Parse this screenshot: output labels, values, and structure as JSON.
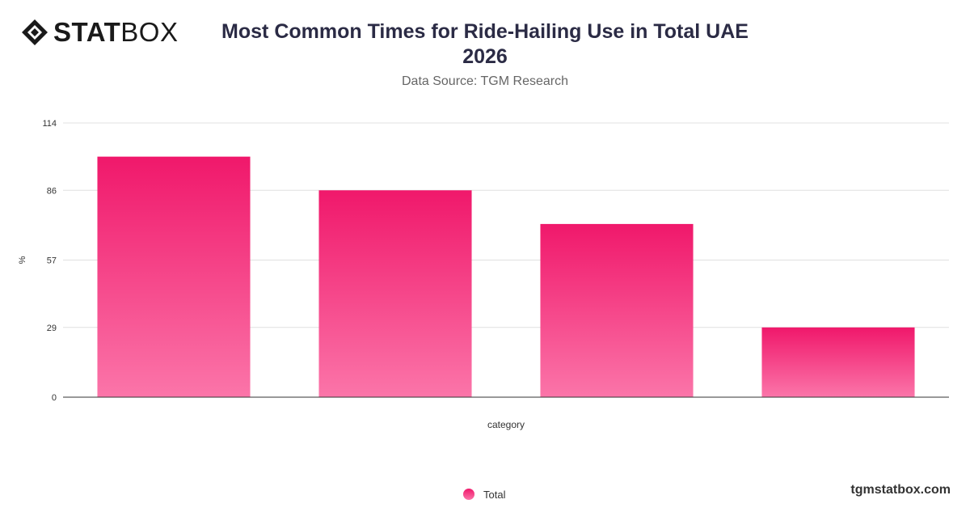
{
  "brand": {
    "logo_bold": "STAT",
    "logo_light": "BOX",
    "footer": "tgmstatbox.com"
  },
  "header": {
    "title_line1": "Most Common Times for Ride-Hailing Use in Total UAE",
    "title_line2": "2026",
    "subtitle": "Data Source: TGM Research"
  },
  "legend": {
    "label": "Total"
  },
  "colors": {
    "bar_top": "#f0186b",
    "bar_bottom": "#fb75a9",
    "grid": "#e0e0e0",
    "axis": "#333333"
  },
  "chart_data": {
    "type": "bar",
    "title": "Most Common Times for Ride-Hailing Use in Total UAE 2026",
    "subtitle": "Data Source: TGM Research",
    "xlabel": "category",
    "ylabel": "%",
    "ylim": [
      0,
      114
    ],
    "yticks": [
      0,
      29,
      57,
      86,
      114
    ],
    "categories": [
      "",
      "",
      "",
      ""
    ],
    "series": [
      {
        "name": "Total",
        "values": [
          100,
          86,
          72,
          29
        ]
      }
    ],
    "grid": true,
    "legend_position": "bottom-center"
  }
}
